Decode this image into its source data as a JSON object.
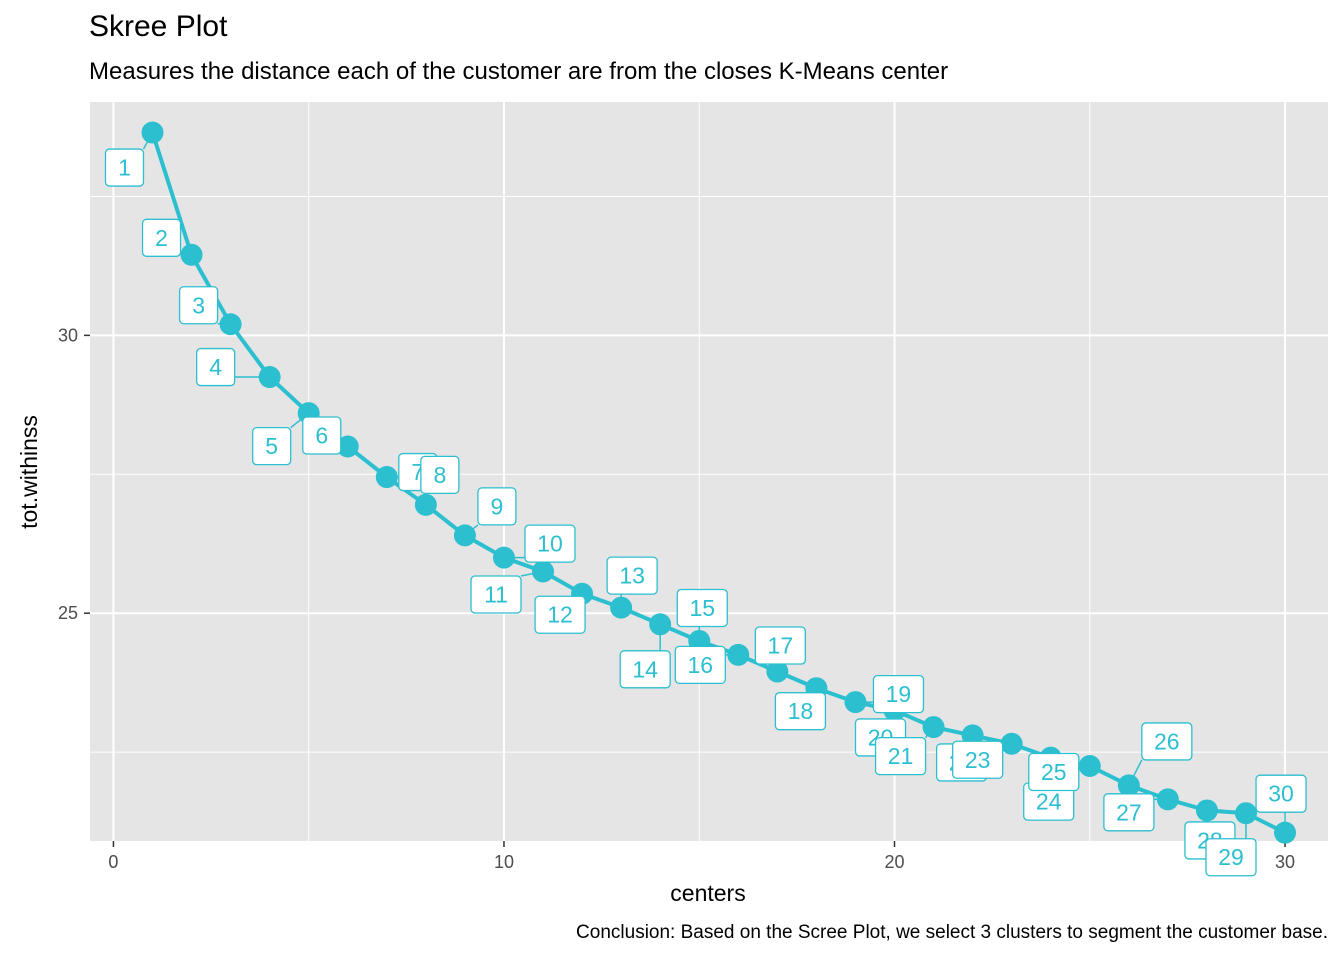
{
  "chart_data": {
    "type": "line",
    "title": "Skree Plot",
    "subtitle": "Measures the distance each of the customer are from the closes K-Means center",
    "caption": "Conclusion: Based on the Scree Plot, we select 3 clusters to segment the customer base.",
    "xlabel": "centers",
    "ylabel": "tot.withinss",
    "xlim": [
      -0.6,
      31.1
    ],
    "ylim": [
      20.9,
      34.2
    ],
    "x_ticks": [
      0,
      10,
      20,
      30
    ],
    "y_ticks": [
      25,
      30
    ],
    "grid": true,
    "colors": {
      "series": "#2cbfcf",
      "panel": "#e5e5e5",
      "grid": "#ffffff"
    },
    "series": [
      {
        "x": [
          1,
          2,
          3,
          4,
          5,
          6,
          7,
          8,
          9,
          10,
          11,
          12,
          13,
          14,
          15,
          16,
          17,
          18,
          19,
          20,
          21,
          22,
          23,
          24,
          25,
          26,
          27,
          28,
          29,
          30
        ],
        "y": [
          33.65,
          31.45,
          30.2,
          29.25,
          28.6,
          28.0,
          27.45,
          26.95,
          26.4,
          26.0,
          25.75,
          25.35,
          25.1,
          24.8,
          24.5,
          24.25,
          23.95,
          23.65,
          23.4,
          23.25,
          22.95,
          22.8,
          22.65,
          22.4,
          22.25,
          21.9,
          21.65,
          21.45,
          21.4,
          21.05
        ],
        "labels": [
          "1",
          "2",
          "3",
          "4",
          "5",
          "6",
          "7",
          "8",
          "9",
          "10",
          "11",
          "12",
          "13",
          "14",
          "15",
          "16",
          "17",
          "18",
          "19",
          "20",
          "21",
          "22",
          "23",
          "24",
          "25",
          "26",
          "27",
          "28",
          "29",
          "30"
        ]
      }
    ]
  }
}
